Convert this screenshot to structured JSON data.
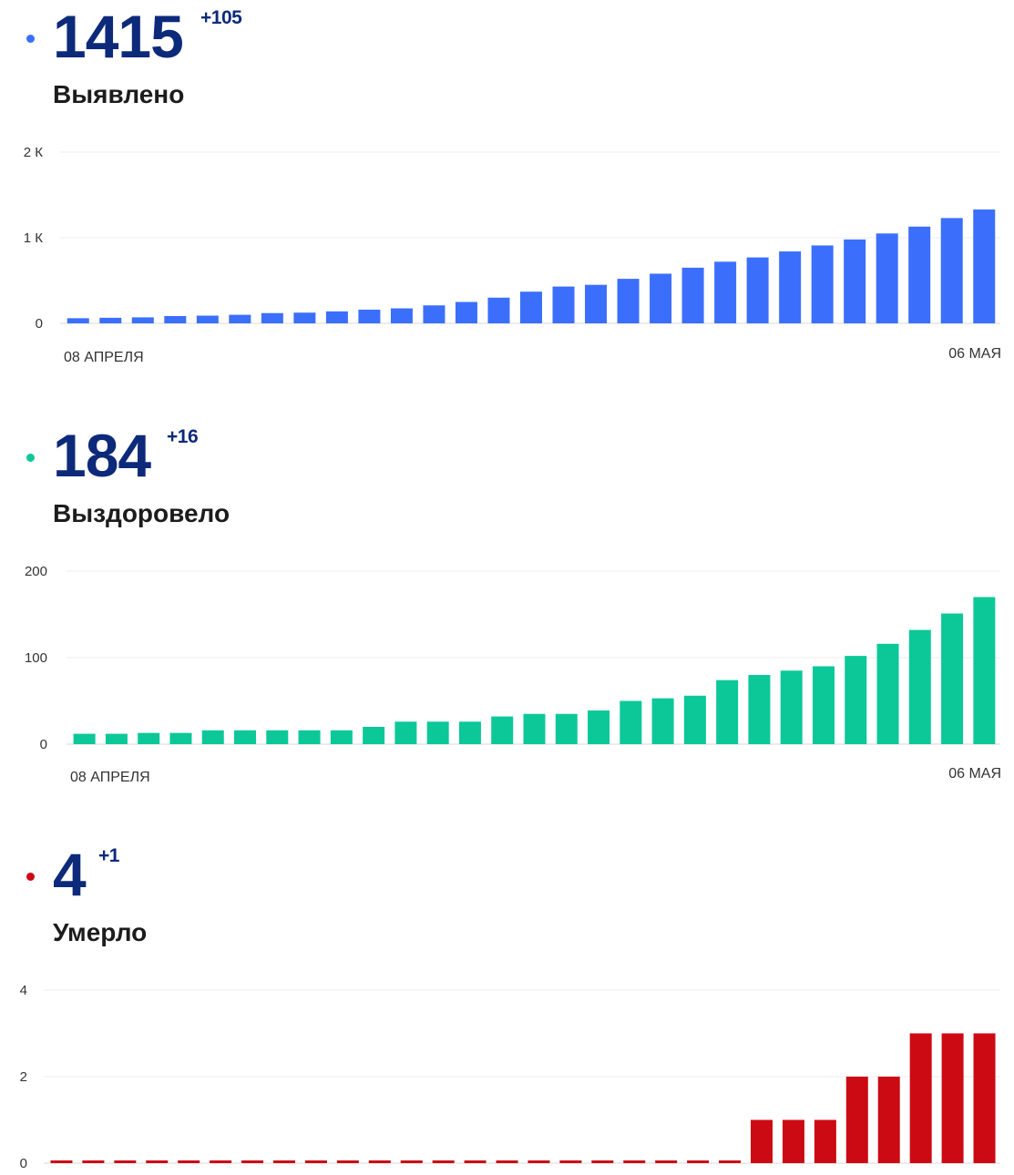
{
  "panels": [
    {
      "id": "detected",
      "value": "1415",
      "delta": "+105",
      "label": "Выявлено",
      "color": "#3b6ffb",
      "dot_color": "#3b6ffb",
      "chart_data": {
        "type": "bar",
        "x_start_label": "08 АПРЕЛЯ",
        "x_end_label": "06 МАЯ",
        "y_ticks": [
          "0",
          "1 К",
          "2 К"
        ],
        "ylim": [
          0,
          2000
        ],
        "grid": true,
        "values": [
          60,
          65,
          70,
          85,
          90,
          100,
          120,
          125,
          140,
          160,
          175,
          210,
          250,
          300,
          370,
          430,
          450,
          520,
          580,
          650,
          720,
          770,
          840,
          910,
          980,
          1050,
          1130,
          1230,
          1330
        ]
      }
    },
    {
      "id": "recovered",
      "value": "184",
      "delta": "+16",
      "label": "Выздоровело",
      "color": "#0cc898",
      "dot_color": "#0cc898",
      "chart_data": {
        "type": "bar",
        "x_start_label": "08 АПРЕЛЯ",
        "x_end_label": "06 МАЯ",
        "y_ticks": [
          "0",
          "100",
          "200"
        ],
        "ylim": [
          0,
          200
        ],
        "grid": true,
        "values": [
          12,
          12,
          13,
          13,
          16,
          16,
          16,
          16,
          16,
          20,
          26,
          26,
          26,
          32,
          35,
          35,
          39,
          50,
          53,
          56,
          74,
          80,
          85,
          90,
          102,
          116,
          132,
          151,
          170
        ]
      }
    },
    {
      "id": "deaths",
      "value": "4",
      "delta": "+1",
      "label": "Умерло",
      "color": "#cc0a14",
      "dot_color": "#cc0a14",
      "chart_data": {
        "type": "bar",
        "y_ticks": [
          "0",
          "2",
          "4"
        ],
        "ylim": [
          0,
          4
        ],
        "grid": true,
        "values": [
          0,
          0,
          0,
          0,
          0,
          0,
          0,
          0,
          0,
          0,
          0,
          0,
          0,
          0,
          0,
          0,
          0,
          0,
          0,
          0,
          0,
          0,
          1,
          1,
          1,
          2,
          2,
          3,
          3,
          3
        ]
      }
    }
  ]
}
